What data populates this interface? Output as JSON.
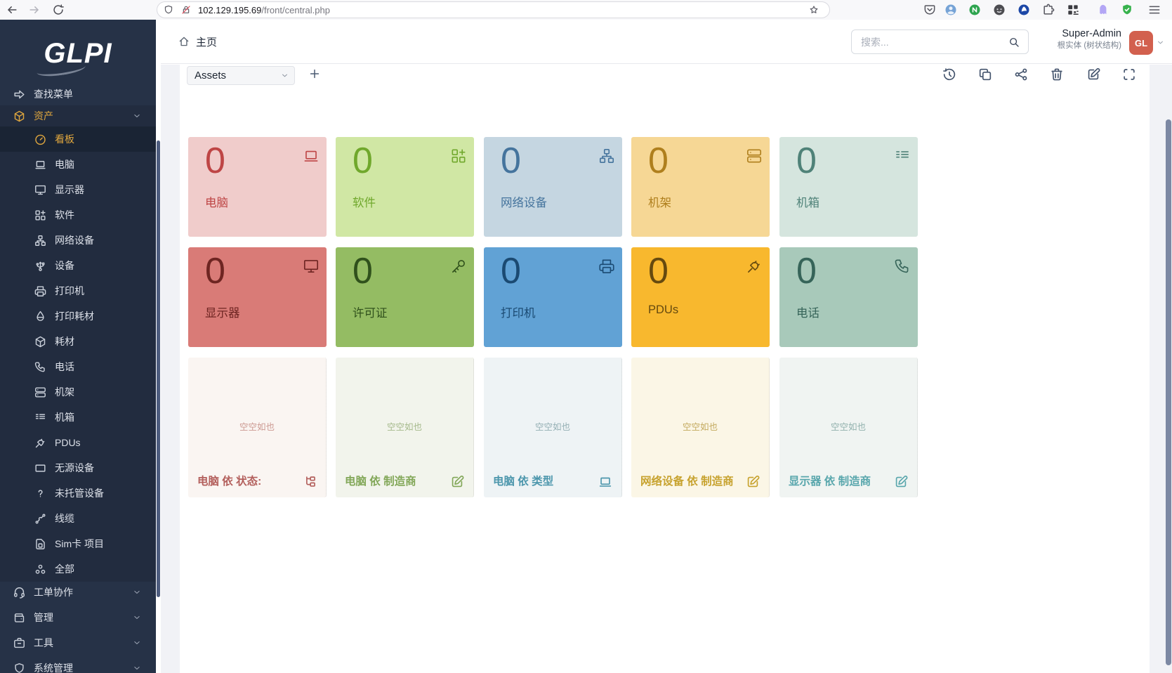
{
  "browser": {
    "url_host": "102.129.195.69",
    "url_path": "/front/central.php",
    "nav_icons": [
      "back",
      "forward",
      "reload"
    ],
    "url_icons": [
      "shield",
      "lock-slash",
      "bookmark-star"
    ],
    "extension_icons": [
      "pocket",
      "profile",
      "notion",
      "tampermonkey",
      "proxy-ball",
      "puzzle",
      "qr-scanner",
      "ghost",
      "adguard",
      "menu"
    ]
  },
  "sidebar": {
    "logo_text": "GLPI",
    "find_menu": {
      "label": "查找菜单",
      "icon": "arrow-big-right"
    },
    "assets_section": {
      "label": "资产",
      "icon": "box"
    },
    "assets_items": [
      {
        "label": "看板",
        "icon": "dashboard",
        "active": true
      },
      {
        "label": "电脑",
        "icon": "laptop"
      },
      {
        "label": "显示器",
        "icon": "monitor"
      },
      {
        "label": "软件",
        "icon": "apps"
      },
      {
        "label": "网络设备",
        "icon": "sitemap"
      },
      {
        "label": "设备",
        "icon": "usb"
      },
      {
        "label": "打印机",
        "icon": "printer"
      },
      {
        "label": "打印耗材",
        "icon": "droplet"
      },
      {
        "label": "耗材",
        "icon": "box"
      },
      {
        "label": "电话",
        "icon": "phone"
      },
      {
        "label": "机架",
        "icon": "server"
      },
      {
        "label": "机箱",
        "icon": "rows"
      },
      {
        "label": "PDUs",
        "icon": "plug"
      },
      {
        "label": "无源设备",
        "icon": "rectangle"
      },
      {
        "label": "未托管设备",
        "icon": "question"
      },
      {
        "label": "线缆",
        "icon": "cable"
      },
      {
        "label": "Sim卡 项目",
        "icon": "sim"
      },
      {
        "label": "全部",
        "icon": "cluster"
      }
    ],
    "menu_sections": [
      {
        "label": "工单协作",
        "icon": "headset"
      },
      {
        "label": "管理",
        "icon": "wallet"
      },
      {
        "label": "工具",
        "icon": "briefcase"
      },
      {
        "label": "系统管理",
        "icon": "shield"
      }
    ]
  },
  "header": {
    "breadcrumb": "主页",
    "search_placeholder": "搜索...",
    "user_name": "Super-Admin",
    "user_entity": "根实体 (树状结构)",
    "avatar_text": "GL",
    "avatar_color": "#D2604E"
  },
  "dashboard": {
    "selector_value": "Assets",
    "toolbar_icons": [
      "history",
      "copy",
      "share",
      "trash",
      "edit",
      "maximize"
    ],
    "count_cards": [
      {
        "label": "电脑",
        "value": "0",
        "icon": "laptop",
        "bg": "#F0CCCB",
        "fg": "#BE4545"
      },
      {
        "label": "软件",
        "value": "0",
        "icon": "apps",
        "bg": "#D0E7A4",
        "fg": "#70A82C"
      },
      {
        "label": "网络设备",
        "value": "0",
        "icon": "sitemap",
        "bg": "#C5D6E1",
        "fg": "#45749D"
      },
      {
        "label": "机架",
        "value": "0",
        "icon": "server",
        "bg": "#F6D795",
        "fg": "#AF7F1D"
      },
      {
        "label": "机箱",
        "value": "0",
        "icon": "rows",
        "bg": "#D5E5DE",
        "fg": "#4F8278"
      },
      {
        "label": "显示器",
        "value": "0",
        "icon": "monitor",
        "bg": "#D97B77",
        "fg": "#6E2522"
      },
      {
        "label": "许可证",
        "value": "0",
        "icon": "key",
        "bg": "#94BC63",
        "fg": "#30511C"
      },
      {
        "label": "打印机",
        "value": "0",
        "icon": "printer",
        "bg": "#61A2D5",
        "fg": "#1B4A72"
      },
      {
        "label": "PDUs",
        "value": "0",
        "icon": "plug",
        "bg": "#F8B82E",
        "fg": "#664A0F"
      },
      {
        "label": "电话",
        "value": "0",
        "icon": "phone",
        "bg": "#A8C9BA",
        "fg": "#366459"
      }
    ],
    "empty_cards": [
      {
        "title": "电脑 依 状态:",
        "icon": "tree",
        "msg": "空空如也",
        "bg": "#FAF5F2",
        "msg_color": "#CC9992",
        "title_color": "#B35F5C"
      },
      {
        "title": "电脑 依 制造商",
        "icon": "edit",
        "msg": "空空如也",
        "bg": "#F2F4EC",
        "msg_color": "#A5B98B",
        "title_color": "#82A758"
      },
      {
        "title": "电脑 依 类型",
        "icon": "laptop",
        "msg": "空空如也",
        "bg": "#EEF3F5",
        "msg_color": "#94AFB4",
        "title_color": "#4C96AC"
      },
      {
        "title": "网络设备 依 制造商",
        "icon": "edit",
        "msg": "空空如也",
        "bg": "#FBF6E6",
        "msg_color": "#C3A95D",
        "title_color": "#C7A22E"
      },
      {
        "title": "显示器 依 制造商",
        "icon": "edit",
        "msg": "空空如也",
        "bg": "#F0F4F2",
        "msg_color": "#91B1AD",
        "title_color": "#58A6AC"
      }
    ]
  }
}
